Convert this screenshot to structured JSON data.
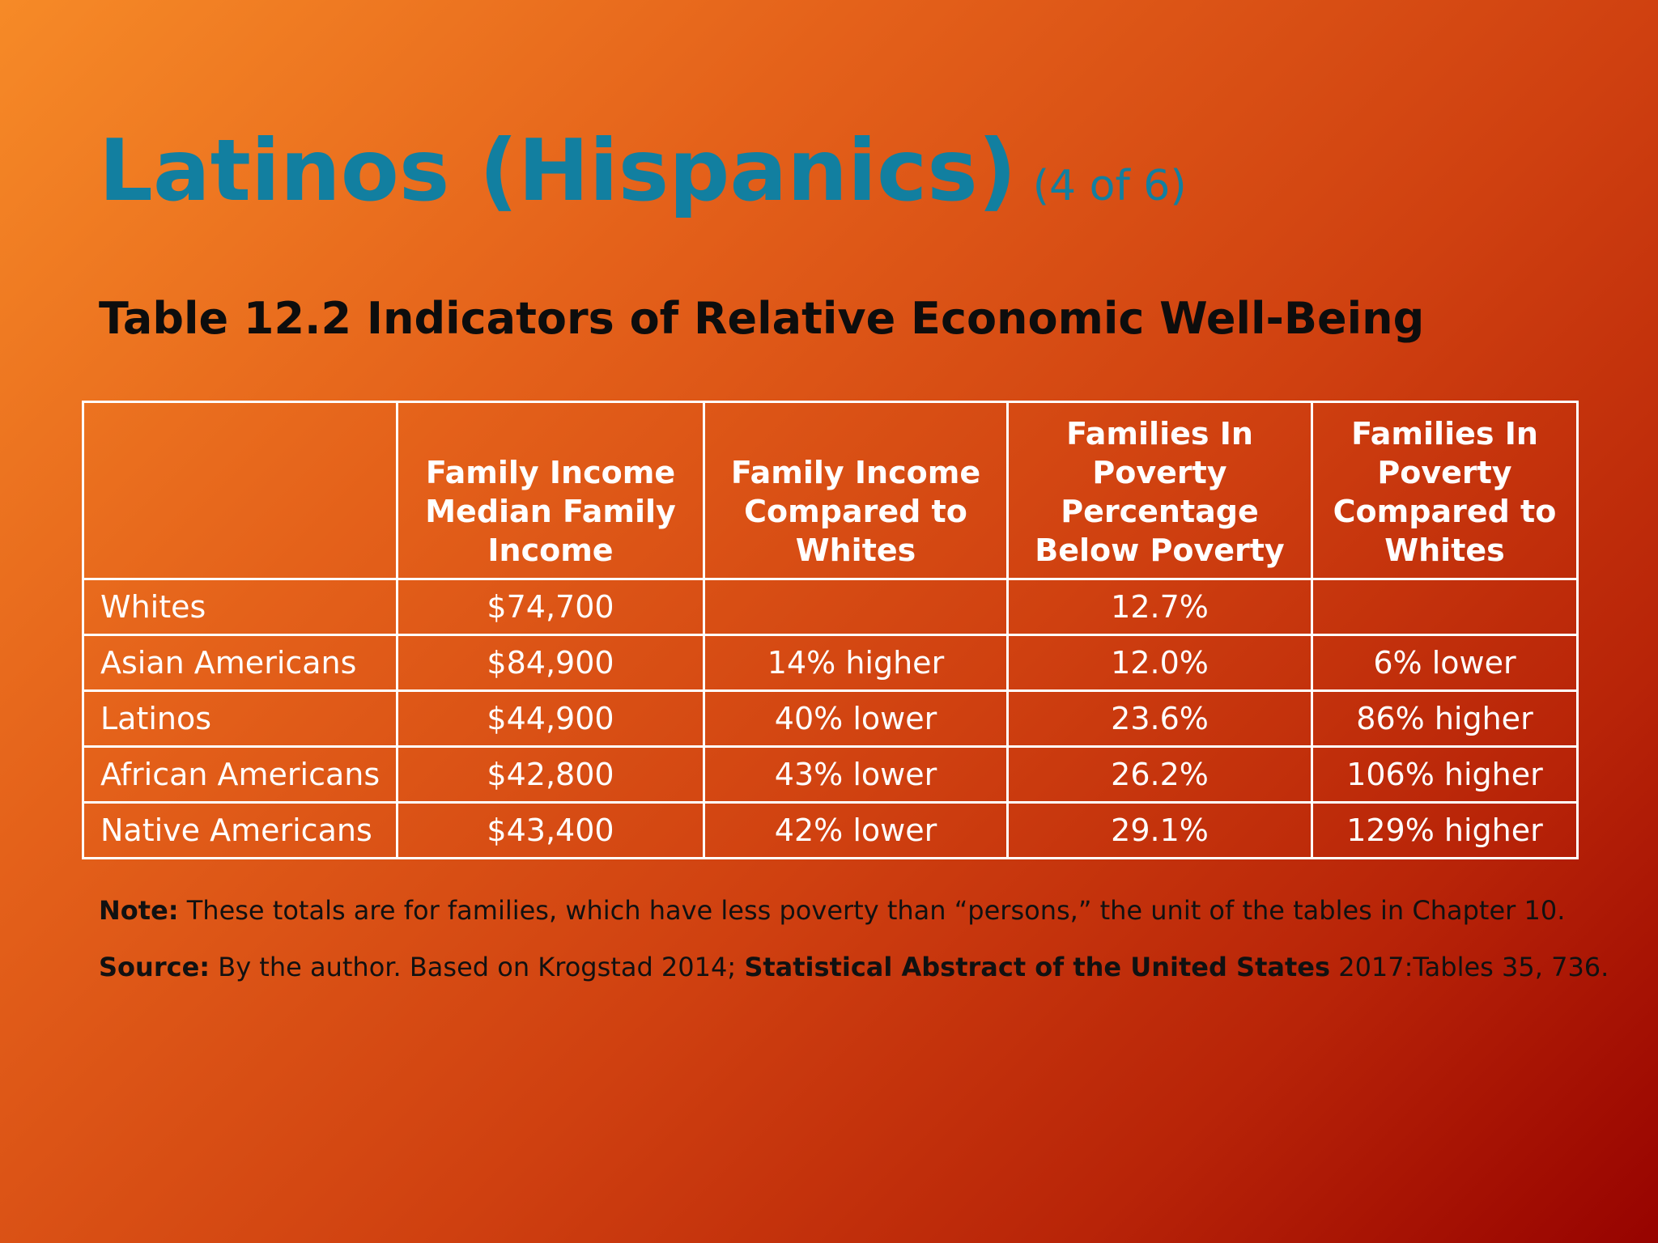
{
  "title": "Latinos (Hispanics)",
  "title_suffix": "(4 of 6)",
  "table_title": "Table 12.2 Indicators of Relative Economic Well-Being",
  "table": {
    "headers": [
      "",
      "Family Income Median Family Income",
      "Family Income Compared to Whites",
      "Families In Poverty Percentage Below Poverty",
      "Families In Poverty Compared to Whites"
    ],
    "rows": [
      [
        "Whites",
        "$74,700",
        "",
        "12.7%",
        ""
      ],
      [
        "Asian Americans",
        "$84,900",
        "14% higher",
        "12.0%",
        "6% lower"
      ],
      [
        "Latinos",
        "$44,900",
        "40% lower",
        "23.6%",
        "86% higher"
      ],
      [
        "African Americans",
        "$42,800",
        "43% lower",
        "26.2%",
        "106% higher"
      ],
      [
        "Native Americans",
        "$43,400",
        "42% lower",
        "29.1%",
        "129% higher"
      ]
    ]
  },
  "note": {
    "label": "Note:",
    "text": " These totals are for families, which have less poverty than “persons,” the unit of the tables in Chapter 10."
  },
  "source": {
    "label": "Source:",
    "text1": " By the author. Based on Krogstad 2014; ",
    "bold_title": "Statistical Abstract of the United States",
    "text2": " 2017:Tables 35, 736."
  }
}
